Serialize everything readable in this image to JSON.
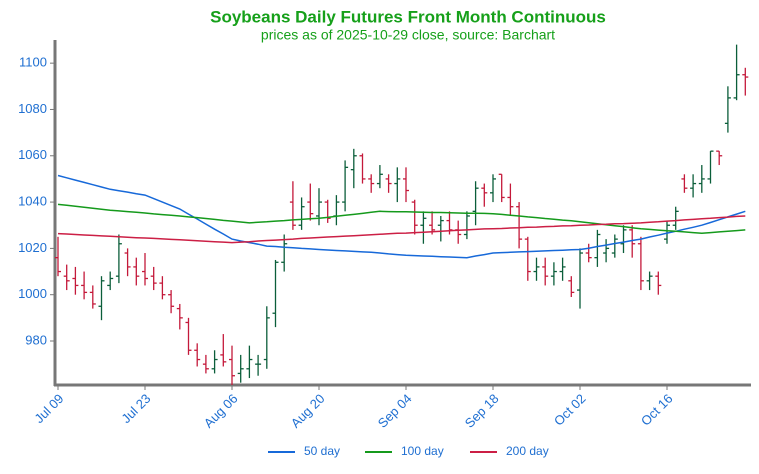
{
  "chart_data": {
    "type": "ohlc",
    "title": "Soybeans Daily Futures Front Month Continuous",
    "subtitle": "prices as of 2025-10-29 close, source: Barchart",
    "categories": [
      "Jul 09",
      null,
      null,
      null,
      null,
      null,
      null,
      null,
      null,
      null,
      "Jul 23",
      null,
      null,
      null,
      null,
      null,
      null,
      null,
      null,
      null,
      "Aug 06",
      null,
      null,
      null,
      null,
      null,
      null,
      null,
      null,
      null,
      "Aug 20",
      null,
      null,
      null,
      null,
      null,
      null,
      null,
      null,
      null,
      "Sep 04",
      null,
      null,
      null,
      null,
      null,
      null,
      null,
      null,
      null,
      "Sep 18",
      null,
      null,
      null,
      null,
      null,
      null,
      null,
      null,
      null,
      "Oct 02",
      null,
      null,
      null,
      null,
      null,
      null,
      null,
      null,
      null,
      "Oct 16",
      null,
      null,
      null,
      null,
      null,
      null,
      null,
      null,
      null
    ],
    "up_color": "#0b5e3a",
    "down_color": "#c4193a",
    "open": [
      1016,
      1008,
      1007,
      1004,
      1001,
      995,
      1004,
      1008,
      1018,
      1012,
      1010,
      1008,
      1005,
      1000,
      994,
      988,
      976,
      970,
      968,
      974,
      972,
      966,
      968,
      970,
      972,
      992,
      1014,
      1040,
      1030,
      1040,
      1034,
      1040,
      1034,
      1040,
      1054,
      1060,
      1050,
      1048,
      1050,
      1048,
      1050,
      1040,
      1030,
      1030,
      1030,
      1032,
      1028,
      1026,
      1036,
      1046,
      1044,
      1052,
      1042,
      1038,
      1024,
      1010,
      1012,
      1008,
      1010,
      1006,
      1002,
      1018,
      1016,
      1018,
      1018,
      1022,
      1028,
      1022,
      1006,
      1008,
      1024,
      1030,
      1050,
      1046,
      1048,
      1050,
      1062,
      1074,
      1085,
      1095
    ],
    "high": [
      1025,
      1013,
      1012,
      1010,
      1004,
      1008,
      1010,
      1026,
      1020,
      1016,
      1018,
      1012,
      1008,
      1002,
      996,
      990,
      979,
      974,
      976,
      983,
      978,
      974,
      978,
      974,
      995,
      1015,
      1026,
      1049,
      1042,
      1048,
      1046,
      1041,
      1043,
      1058,
      1063,
      1061,
      1052,
      1056,
      1052,
      1055,
      1055,
      1041,
      1036,
      1036,
      1034,
      1036,
      1032,
      1036,
      1049,
      1048,
      1052,
      1052,
      1048,
      1040,
      1025,
      1016,
      1016,
      1014,
      1016,
      1008,
      1020,
      1022,
      1028,
      1024,
      1026,
      1030,
      1030,
      1025,
      1010,
      1010,
      1032,
      1038,
      1052,
      1052,
      1056,
      1062,
      1062,
      1090,
      1108,
      1098
    ],
    "low": [
      1008,
      1002,
      1000,
      998,
      994,
      989,
      1002,
      1005,
      1008,
      1004,
      1004,
      1002,
      998,
      992,
      985,
      974,
      969,
      966,
      966,
      969,
      961,
      962,
      964,
      965,
      968,
      986,
      1010,
      1028,
      1028,
      1032,
      1030,
      1031,
      1030,
      1036,
      1046,
      1048,
      1044,
      1046,
      1044,
      1040,
      1040,
      1026,
      1022,
      1026,
      1023,
      1026,
      1022,
      1024,
      1030,
      1038,
      1040,
      1040,
      1034,
      1020,
      1006,
      1006,
      1004,
      1004,
      1006,
      999,
      994,
      1014,
      1012,
      1014,
      1016,
      1018,
      1016,
      1002,
      1002,
      1000,
      1022,
      1028,
      1044,
      1042,
      1044,
      1048,
      1056,
      1070,
      1084,
      1086
    ],
    "close": [
      1010,
      1006,
      1004,
      1001,
      996,
      1006,
      1007,
      1022,
      1012,
      1008,
      1007,
      1005,
      1000,
      995,
      990,
      976,
      972,
      968,
      972,
      971,
      965,
      968,
      972,
      970,
      990,
      1014,
      1022,
      1030,
      1038,
      1035,
      1040,
      1033,
      1040,
      1055,
      1060,
      1050,
      1048,
      1052,
      1048,
      1050,
      1045,
      1030,
      1033,
      1028,
      1032,
      1028,
      1026,
      1034,
      1046,
      1044,
      1050,
      1042,
      1038,
      1024,
      1010,
      1012,
      1008,
      1010,
      1012,
      1001,
      1018,
      1016,
      1026,
      1020,
      1024,
      1028,
      1022,
      1006,
      1008,
      1004,
      1030,
      1036,
      1046,
      1048,
      1050,
      1062,
      1060,
      1085,
      1095,
      1094
    ],
    "series": [
      {
        "name": "50 day",
        "color": "#1769d9",
        "values": [
          1051.5,
          1050.5,
          1049.5,
          1048.5,
          1047.5,
          1046.5,
          1045.5,
          1044.9,
          1044.3,
          1043.6,
          1043,
          1041.5,
          1040,
          1038.5,
          1037,
          1034.8,
          1032.7,
          1030.5,
          1028.3,
          1026.2,
          1024,
          1023.2,
          1022.5,
          1021.8,
          1021,
          1020.8,
          1020.5,
          1020.3,
          1020,
          1019.8,
          1019.5,
          1019.3,
          1019.1,
          1018.9,
          1018.7,
          1018.5,
          1018.3,
          1018,
          1017.6,
          1017.3,
          1017,
          1016.9,
          1016.7,
          1016.6,
          1016.4,
          1016.3,
          1016.1,
          1016,
          1016.7,
          1017.3,
          1018,
          1018.2,
          1018.3,
          1018.5,
          1018.6,
          1018.8,
          1018.9,
          1019.1,
          1019.2,
          1019.4,
          1019.5,
          1020.1,
          1020.8,
          1021.4,
          1022.1,
          1022.7,
          1023.4,
          1024,
          1024.9,
          1025.7,
          1026.6,
          1027.4,
          1028.3,
          1029.1,
          1030,
          1031.2,
          1032.4,
          1033.6,
          1034.8,
          1036
        ]
      },
      {
        "name": "100 day",
        "color": "#159a1c",
        "values": [
          1039,
          1038.6,
          1038.2,
          1037.8,
          1037.3,
          1036.9,
          1036.5,
          1036.2,
          1035.9,
          1035.6,
          1035.3,
          1034.9,
          1034.6,
          1034.3,
          1034,
          1033.6,
          1033.3,
          1032.9,
          1032.5,
          1032.1,
          1031.8,
          1031.4,
          1031,
          1031.3,
          1031.5,
          1031.8,
          1032,
          1032.3,
          1032.5,
          1032.8,
          1033,
          1033.4,
          1033.9,
          1034.3,
          1034.7,
          1035.1,
          1035.6,
          1036,
          1035.9,
          1035.8,
          1035.8,
          1035.7,
          1035.6,
          1035.5,
          1035.5,
          1035.4,
          1035.3,
          1035.2,
          1035.2,
          1035.1,
          1035,
          1034.7,
          1034.3,
          1034,
          1033.6,
          1033.3,
          1032.9,
          1032.6,
          1032.2,
          1031.9,
          1031.5,
          1031.1,
          1030.6,
          1030.2,
          1029.8,
          1029.4,
          1028.9,
          1028.5,
          1028.2,
          1027.9,
          1027.6,
          1027.4,
          1027.1,
          1026.8,
          1026.5,
          1026.8,
          1027.1,
          1027.4,
          1027.7,
          1028
        ]
      },
      {
        "name": "200 day",
        "color": "#cc1f45",
        "values": [
          1026.4,
          1026.2,
          1026,
          1025.8,
          1025.6,
          1025.4,
          1025.2,
          1025,
          1024.8,
          1024.6,
          1024.5,
          1024.3,
          1024.1,
          1023.9,
          1023.7,
          1023.5,
          1023.3,
          1023.1,
          1022.9,
          1022.7,
          1022.5,
          1022.7,
          1022.9,
          1023.2,
          1023.4,
          1023.6,
          1023.8,
          1024,
          1024.3,
          1024.5,
          1024.7,
          1024.9,
          1025.1,
          1025.3,
          1025.5,
          1025.7,
          1025.9,
          1026.1,
          1026.3,
          1026.5,
          1026.6,
          1026.8,
          1027,
          1027.2,
          1027.4,
          1027.6,
          1027.8,
          1028,
          1028.2,
          1028.4,
          1028.5,
          1028.6,
          1028.8,
          1028.9,
          1029.1,
          1029.2,
          1029.4,
          1029.5,
          1029.7,
          1029.8,
          1030,
          1030.1,
          1030.3,
          1030.4,
          1030.6,
          1030.7,
          1030.9,
          1031,
          1031.3,
          1031.5,
          1031.8,
          1032,
          1032.3,
          1032.5,
          1032.8,
          1033,
          1033.3,
          1033.5,
          1033.8,
          1034
        ]
      }
    ],
    "ylim": [
      961,
      1110
    ],
    "yticks": [
      980,
      1000,
      1020,
      1040,
      1060,
      1080,
      1100
    ],
    "grid": false,
    "legend": "bottom"
  }
}
